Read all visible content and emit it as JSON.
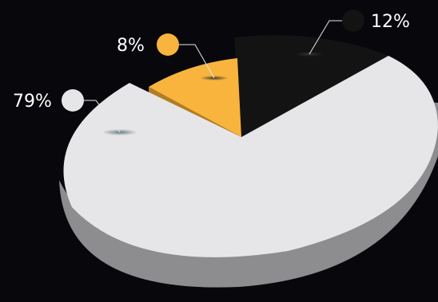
{
  "chart_data": {
    "type": "pie",
    "title": "",
    "style": "3d-exploded",
    "slices": [
      {
        "label": "79%",
        "value": 79,
        "color": "#e6e6e8",
        "side_color": "#8d8d8f",
        "marker_color": "#e6e6e8"
      },
      {
        "label": "8%",
        "value": 8,
        "color": "#f8b43d",
        "side_color": "#b27e22",
        "marker_color": "#f8b43d"
      },
      {
        "label": "12%",
        "value": 12,
        "color": "#131313",
        "side_color": "#0a0a0a",
        "marker_color": "#131313"
      }
    ],
    "background_color": "#08070b",
    "legend": "none"
  }
}
